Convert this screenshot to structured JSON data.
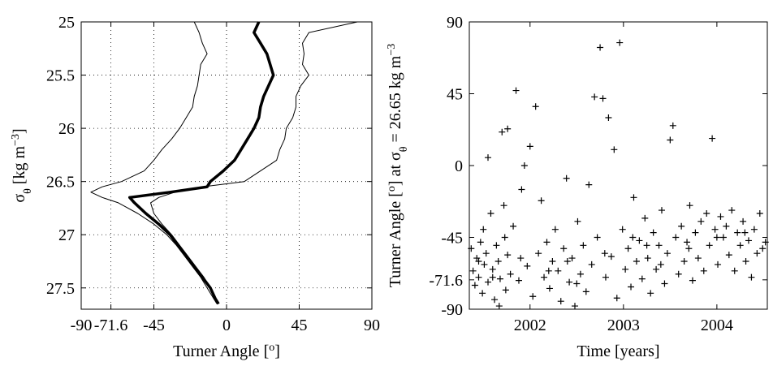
{
  "chart_data": [
    {
      "type": "line",
      "xlabel": [
        {
          "text": "Turner Angle ["
        },
        {
          "text": "o",
          "script": "sup"
        },
        {
          "text": "]"
        }
      ],
      "ylabel": [
        {
          "text": "σ"
        },
        {
          "text": "θ",
          "script": "sub"
        },
        {
          "text": " [kg m"
        },
        {
          "text": "−3",
          "script": "sup"
        },
        {
          "text": "]"
        }
      ],
      "xlim": [
        -90,
        90
      ],
      "xticks": [
        -90,
        -71.6,
        -45,
        0,
        45,
        90
      ],
      "ylim": [
        25,
        27.7
      ],
      "yticks": [
        25,
        25.5,
        26,
        26.5,
        27,
        27.5
      ],
      "y_reversed": true,
      "grid": true,
      "y": [
        25,
        25.1,
        25.2,
        25.3,
        25.4,
        25.5,
        25.6,
        25.7,
        25.8,
        25.9,
        26.0,
        26.1,
        26.2,
        26.3,
        26.4,
        26.5,
        26.55,
        26.6,
        26.65,
        26.7,
        26.8,
        26.9,
        27.0,
        27.1,
        27.2,
        27.3,
        27.4,
        27.5,
        27.6,
        27.65
      ],
      "series": [
        {
          "color": "#000000",
          "line_width": 3.5,
          "values": [
            20,
            17,
            21,
            25,
            27,
            29,
            26,
            23,
            21,
            20,
            17,
            13,
            9,
            5,
            -2,
            -10,
            -12,
            -35,
            -60,
            -57,
            -50,
            -42,
            -35,
            -30,
            -25,
            -20,
            -15,
            -10,
            -7,
            -5
          ]
        },
        {
          "color": "#000000",
          "line_width": 1,
          "values": [
            -20,
            -17,
            -15,
            -12,
            -16,
            -17,
            -18,
            -20,
            -21,
            -25,
            -29,
            -34,
            -40,
            -45,
            -51,
            -65,
            -77,
            -84,
            -77,
            -67,
            -55,
            -45,
            -37,
            -31,
            -26,
            -21,
            -16,
            -12,
            -8,
            -6
          ]
        },
        {
          "color": "#000000",
          "line_width": 1,
          "values": [
            81,
            51,
            47,
            48,
            47,
            51,
            46,
            43,
            43,
            41,
            37,
            36,
            33,
            31,
            21,
            11,
            -15,
            -32,
            -42,
            -47,
            -45,
            -40,
            -34,
            -29,
            -24,
            -19,
            -14,
            -10,
            -7,
            -5
          ]
        }
      ]
    },
    {
      "type": "scatter",
      "xlabel": [
        {
          "text": "Time [years]"
        }
      ],
      "ylabel": [
        {
          "text": "Turner Angle ["
        },
        {
          "text": "o",
          "script": "sup"
        },
        {
          "text": "] at σ"
        },
        {
          "text": "θ",
          "script": "sub"
        },
        {
          "text": " = 26.65 kg m"
        },
        {
          "text": "−3",
          "script": "sup"
        }
      ],
      "xlim": [
        2001.35,
        2004.54
      ],
      "xticks": [
        2002,
        2003,
        2004
      ],
      "ylim": [
        -90,
        90
      ],
      "yticks": [
        -90,
        -71.6,
        -45,
        0,
        45,
        90
      ],
      "grid": false,
      "color": "#000000",
      "x": [
        2001.37,
        2001.39,
        2001.41,
        2001.43,
        2001.45,
        2001.47,
        2001.49,
        2001.51,
        2001.53,
        2001.55,
        2001.58,
        2001.6,
        2001.62,
        2001.64,
        2001.66,
        2001.68,
        2001.55,
        2001.72,
        2001.74,
        2001.76,
        2001.67,
        2001.7,
        2001.73,
        2001.76,
        2001.79,
        2001.82,
        2001.85,
        2001.88,
        2001.91,
        2001.94,
        2001.97,
        2002.0,
        2002.03,
        2002.06,
        2002.09,
        2002.12,
        2002.15,
        2002.18,
        2002.21,
        2002.24,
        2002.27,
        2002.3,
        2002.33,
        2002.36,
        2002.39,
        2002.42,
        2002.45,
        2002.48,
        2002.51,
        2002.54,
        2002.57,
        2002.6,
        2002.63,
        2002.66,
        2002.69,
        2002.72,
        2002.75,
        2002.78,
        2002.81,
        2002.84,
        2002.87,
        2002.9,
        2002.93,
        2002.96,
        2002.99,
        2003.02,
        2003.05,
        2003.08,
        2003.11,
        2003.14,
        2003.17,
        2003.2,
        2003.23,
        2003.26,
        2003.29,
        2003.32,
        2003.35,
        2003.38,
        2003.41,
        2003.44,
        2003.47,
        2003.5,
        2003.53,
        2003.56,
        2003.59,
        2003.62,
        2003.65,
        2003.68,
        2003.71,
        2003.74,
        2003.77,
        2003.8,
        2003.83,
        2003.86,
        2003.89,
        2003.92,
        2003.95,
        2003.98,
        2004.01,
        2004.04,
        2004.07,
        2004.1,
        2004.13,
        2004.16,
        2004.19,
        2004.22,
        2004.25,
        2004.28,
        2004.31,
        2004.34,
        2004.37,
        2004.4,
        2004.43,
        2004.46,
        2004.49,
        2004.52,
        2001.45,
        2001.5,
        2001.9,
        2002.2,
        2002.5,
        2002.8,
        2003.1,
        2003.4,
        2003.7,
        2004.0,
        2004.3,
        2001.6,
        2002.4,
        2003.25
      ],
      "values": [
        -52,
        -66,
        -75,
        -58,
        -70,
        -48,
        -80,
        -62,
        -55,
        -73,
        -30,
        -65,
        -84,
        -50,
        -60,
        -71,
        5,
        -25,
        -78,
        -56,
        -88,
        21,
        -45,
        23,
        -68,
        -38,
        47,
        -72,
        -15,
        0,
        -63,
        12,
        -82,
        37,
        -55,
        -22,
        -70,
        -48,
        -77,
        -60,
        -40,
        -66,
        -85,
        -52,
        -8,
        -73,
        -58,
        -88,
        -35,
        -68,
        -50,
        -79,
        -12,
        -62,
        43,
        -45,
        74,
        42,
        -70,
        30,
        -57,
        10,
        -83,
        77,
        -40,
        -65,
        -52,
        -76,
        -20,
        -60,
        -47,
        -71,
        -33,
        -58,
        -80,
        -42,
        -65,
        -50,
        -28,
        -74,
        -55,
        16,
        25,
        -45,
        -68,
        -38,
        -60,
        -48,
        -25,
        -72,
        -42,
        -58,
        -35,
        -66,
        -30,
        -50,
        17,
        -40,
        -62,
        -32,
        -45,
        -38,
        -56,
        -28,
        -66,
        -42,
        -50,
        -35,
        -60,
        -47,
        -70,
        -40,
        -55,
        -30,
        -52,
        -48,
        -60,
        -40,
        -58,
        -66,
        -74,
        -55,
        -45,
        -62,
        -52,
        -45,
        -42,
        -70,
        -60,
        -50
      ]
    }
  ]
}
